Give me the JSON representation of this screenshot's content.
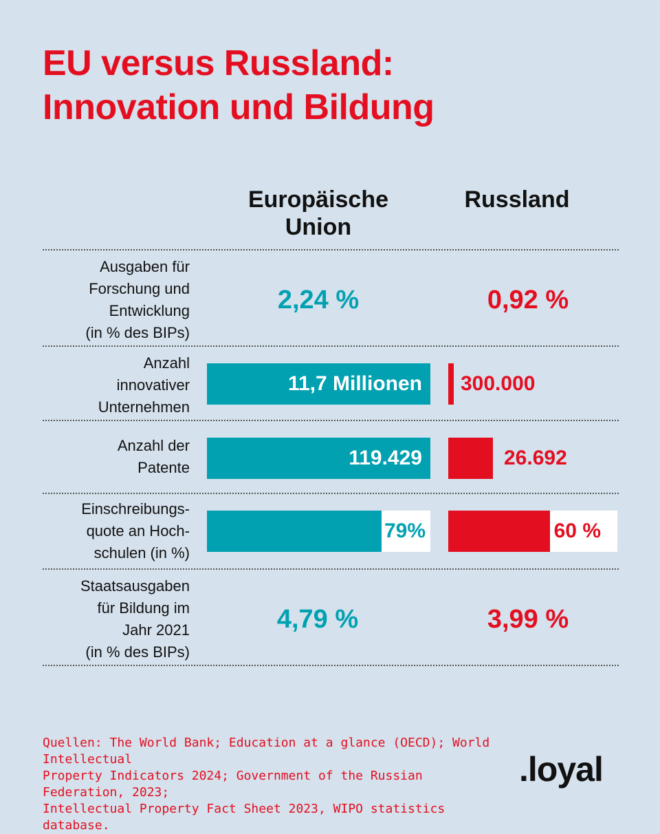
{
  "title_line1": "EU versus Russland:",
  "title_line2": "Innovation und Bildung",
  "columns": {
    "eu_line1": "Europäische",
    "eu_line2": "Union",
    "ru": "Russland"
  },
  "rows": [
    {
      "label_lines": [
        "Ausgaben für",
        "Forschung und",
        "Entwicklung",
        "(in % des BIPs)"
      ],
      "eu_text": "2,24 %",
      "ru_text": "0,92 %"
    },
    {
      "label_lines": [
        "Anzahl",
        "innovativer",
        "Unternehmen"
      ],
      "eu_text": "11,7 Millionen",
      "ru_text": "300.000"
    },
    {
      "label_lines": [
        "Anzahl der",
        "Patente"
      ],
      "eu_text": "119.429",
      "ru_text": "26.692"
    },
    {
      "label_lines": [
        "Einschreibungs-",
        "quote an Hoch-",
        "schulen (in %)"
      ],
      "eu_text": "79%",
      "ru_text": "60 %"
    },
    {
      "label_lines": [
        "Staatsausgaben",
        "für Bildung im",
        "Jahr 2021",
        "(in % des BIPs)"
      ],
      "eu_text": "4,79 %",
      "ru_text": "3,99 %"
    }
  ],
  "chart_data": {
    "type": "table",
    "title": "EU versus Russland: Innovation und Bildung",
    "series": [
      {
        "name": "Europäische Union",
        "values": [
          2.24,
          11700000,
          119429,
          79,
          4.79
        ]
      },
      {
        "name": "Russland",
        "values": [
          0.92,
          300000,
          26692,
          60,
          3.99
        ]
      }
    ],
    "categories": [
      "Ausgaben für Forschung und Entwicklung (in % des BIPs)",
      "Anzahl innovativer Unternehmen",
      "Anzahl der Patente",
      "Einschreibungsquote an Hochschulen (in %)",
      "Staatsausgaben für Bildung im Jahr 2021 (in % des BIPs)"
    ],
    "bar_rows": [
      1,
      2,
      3
    ]
  },
  "colors": {
    "eu": "#01a1b1",
    "ru": "#e30f21",
    "background": "#d5e1ec"
  },
  "sources": [
    "Quellen: The World Bank; Education at a glance (OECD); World Intellectual",
    "Property Indicators 2024; Government of the Russian Federation, 2023;",
    "Intellectual Property Fact Sheet 2023, WIPO statistics database."
  ],
  "logo": ".loyal"
}
